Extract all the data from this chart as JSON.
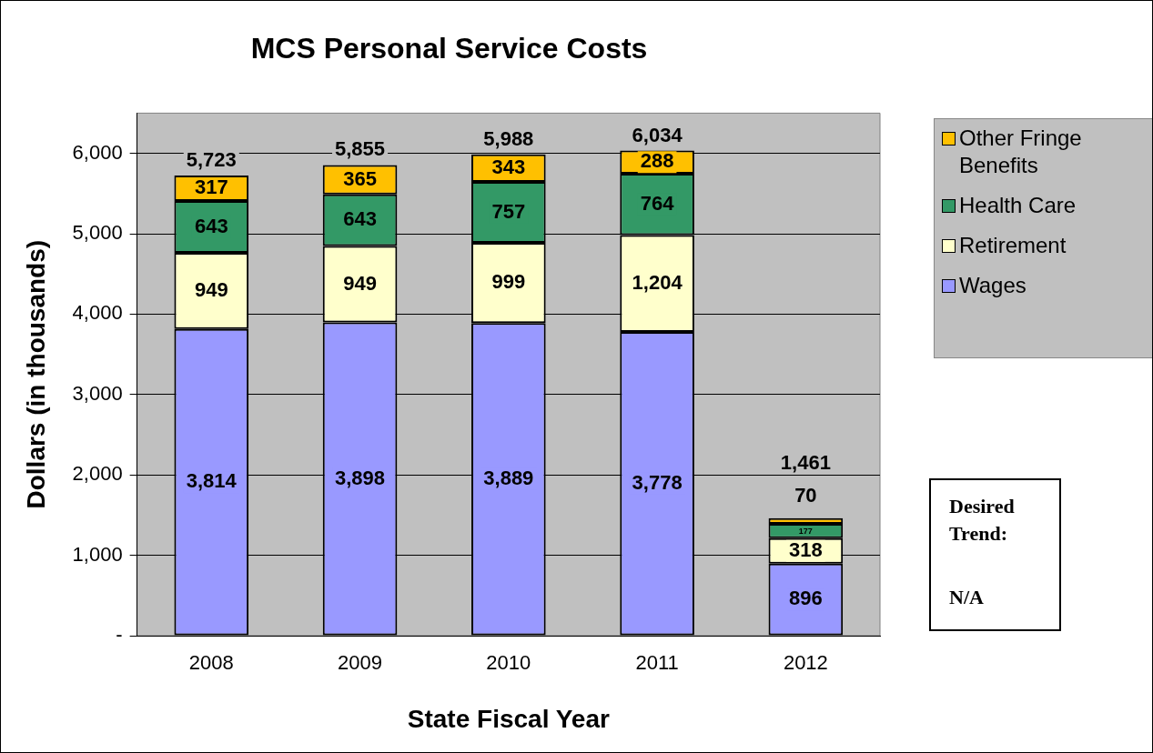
{
  "chart_data": {
    "type": "bar",
    "title": "MCS Personal Service Costs",
    "xlabel": "State Fiscal Year",
    "ylabel": "Dollars (in thousands)",
    "categories": [
      "2008",
      "2009",
      "2010",
      "2011",
      "2012"
    ],
    "series": [
      {
        "name": "Wages",
        "color": "#9999ff",
        "values": [
          3814,
          3898,
          3889,
          3778,
          896
        ],
        "value_labels": [
          "3,814",
          "3,898",
          "3,889",
          "3,778",
          "896"
        ]
      },
      {
        "name": "Retirement",
        "color": "#ffffcc",
        "values": [
          949,
          949,
          999,
          1204,
          318
        ],
        "value_labels": [
          "949",
          "949",
          "999",
          "1,204",
          "318"
        ]
      },
      {
        "name": "Health Care",
        "color": "#339966",
        "values": [
          643,
          643,
          757,
          764,
          177
        ],
        "value_labels": [
          "643",
          "643",
          "757",
          "764",
          "177"
        ]
      },
      {
        "name": "Other Fringe Benefits",
        "color": "#ffc000",
        "values": [
          317,
          365,
          343,
          288,
          70
        ],
        "value_labels": [
          "317",
          "365",
          "343",
          "288",
          "70"
        ]
      }
    ],
    "stacked": true,
    "totals": [
      "5,723",
      "5,855",
      "5,988",
      "6,034",
      "1,461"
    ],
    "ylim": [
      0,
      6500
    ],
    "yticks": [
      {
        "value": 0,
        "label": "-"
      },
      {
        "value": 1000,
        "label": "1,000"
      },
      {
        "value": 2000,
        "label": "2,000"
      },
      {
        "value": 3000,
        "label": "3,000"
      },
      {
        "value": 4000,
        "label": "4,000"
      },
      {
        "value": 5000,
        "label": "5,000"
      },
      {
        "value": 6000,
        "label": "6,000"
      }
    ],
    "grid": "y",
    "legend": "right",
    "annotations": [
      "Desired Trend:",
      "N/A"
    ]
  }
}
